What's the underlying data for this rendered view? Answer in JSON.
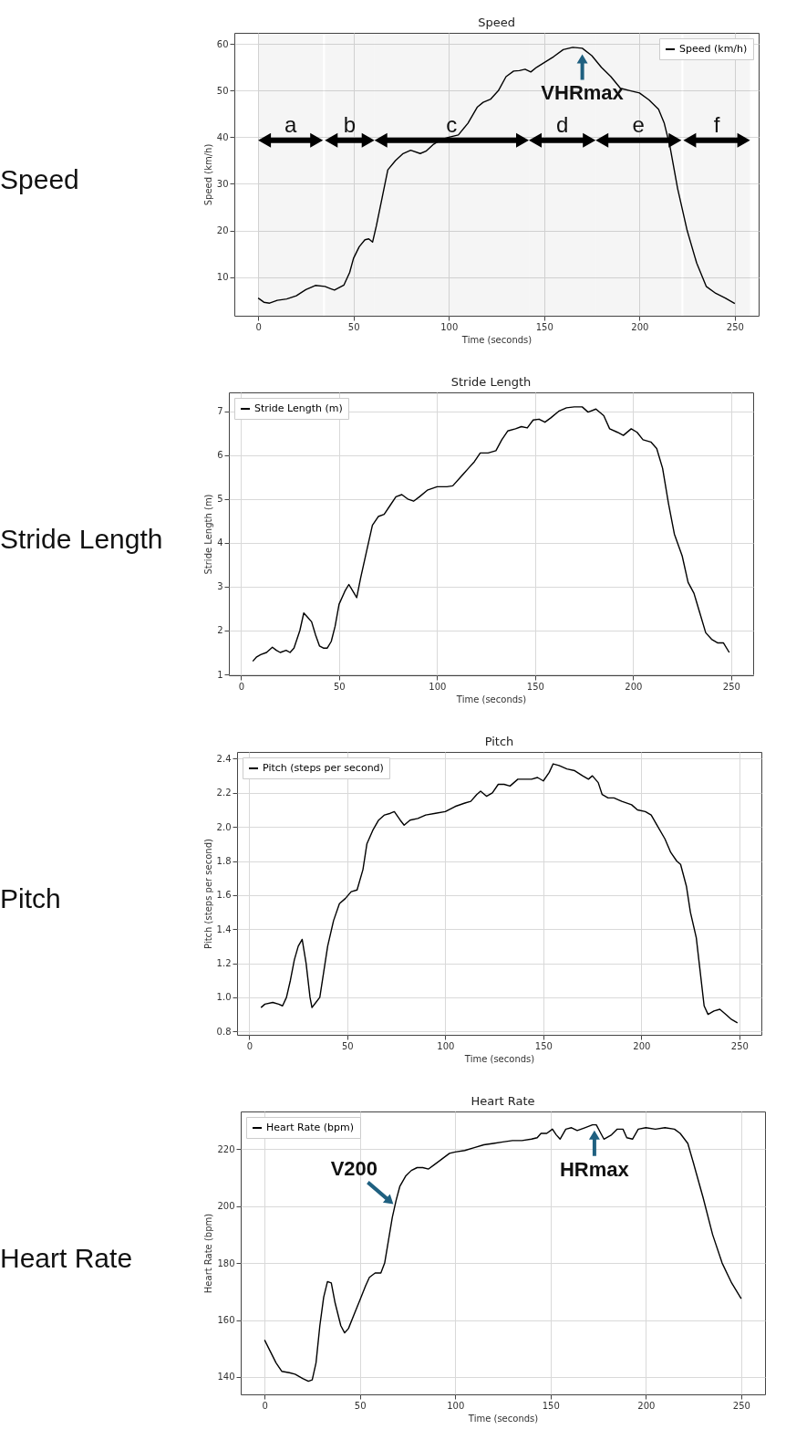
{
  "chart_data": [
    {
      "type": "line",
      "title": "Speed",
      "xlabel": "Time (seconds)",
      "ylabel": "Speed (km/h)",
      "xlim": [
        -12.5,
        262.5
      ],
      "ylim": [
        1.7,
        62.4
      ],
      "xticks": [
        0,
        50,
        100,
        150,
        200,
        250
      ],
      "yticks": [
        10,
        20,
        30,
        40,
        50,
        60
      ],
      "grid": true,
      "legend": "top right",
      "annotations": [
        "Speed",
        {
          "text": "VHRmax",
          "x": 170,
          "y": 59
        }
      ],
      "bands": [
        {
          "axis": "x",
          "from": 0,
          "to": 34,
          "label": "a",
          "color": "#000000"
        },
        {
          "axis": "x",
          "from": 35,
          "to": 61,
          "label": "b",
          "color": "#000000"
        },
        {
          "axis": "x",
          "from": 61,
          "to": 142,
          "label": "c",
          "color": "#000000"
        },
        {
          "axis": "x",
          "from": 142,
          "to": 177,
          "label": "d",
          "color": "#000000"
        },
        {
          "axis": "x",
          "from": 177,
          "to": 222,
          "label": "e",
          "color": "#000000"
        },
        {
          "axis": "x",
          "from": 223,
          "to": 258,
          "label": "f",
          "color": "#000000"
        }
      ],
      "series": [
        {
          "name": "Speed (km/h)",
          "color": "#000000",
          "x": [
            0,
            3,
            6,
            10,
            15,
            20,
            25,
            30,
            35,
            38,
            40,
            45,
            48,
            50,
            53,
            56,
            58,
            60,
            62,
            65,
            68,
            72,
            76,
            80,
            85,
            88,
            92,
            96,
            100,
            105,
            110,
            115,
            118,
            122,
            126,
            130,
            134,
            137,
            140,
            143,
            146,
            150,
            155,
            160,
            165,
            170,
            175,
            180,
            185,
            190,
            195,
            200,
            205,
            210,
            213,
            216,
            220,
            225,
            230,
            235,
            240,
            245,
            250
          ],
          "values": [
            5.5,
            4.6,
            4.4,
            5,
            5.3,
            6,
            7.3,
            8.2,
            8,
            7.5,
            7.2,
            8.3,
            11,
            14,
            16.5,
            18,
            18.2,
            17.5,
            21,
            27,
            33,
            35,
            36.5,
            37.2,
            36.5,
            37,
            38.5,
            39.5,
            40,
            40.5,
            43,
            46.5,
            47.5,
            48.2,
            50,
            53,
            54.2,
            54.3,
            54.6,
            54,
            55,
            56,
            57.3,
            58.8,
            59.3,
            59.1,
            57.5,
            55,
            53,
            50.5,
            50,
            49.5,
            48,
            46,
            43,
            38,
            29,
            20,
            13,
            8,
            6.5,
            5.5,
            4.3
          ]
        }
      ]
    },
    {
      "type": "line",
      "title": "Stride Length",
      "xlabel": "Time (seconds)",
      "ylabel": "Stride Length (m)",
      "xlim": [
        -6.2,
        261.2
      ],
      "ylim": [
        0.98,
        7.43
      ],
      "xticks": [
        0,
        50,
        100,
        150,
        200,
        250
      ],
      "yticks": [
        1,
        2,
        3,
        4,
        5,
        6,
        7
      ],
      "grid": true,
      "legend": "top left",
      "annotations": [
        "Stride Length"
      ],
      "series": [
        {
          "name": "Stride Length (m)",
          "color": "#000000",
          "x": [
            6,
            8,
            10,
            13,
            16,
            18,
            20,
            23,
            25,
            27,
            30,
            32,
            34,
            36,
            38,
            40,
            42,
            44,
            46,
            48,
            50,
            53,
            55,
            57,
            59,
            61,
            64,
            67,
            70,
            73,
            76,
            79,
            82,
            85,
            88,
            91,
            95,
            100,
            105,
            108,
            112,
            116,
            119,
            122,
            126,
            130,
            133,
            136,
            140,
            143,
            146,
            149,
            152,
            155,
            158,
            162,
            166,
            170,
            174,
            177,
            181,
            185,
            188,
            192,
            195,
            199,
            202,
            205,
            209,
            212,
            215,
            218,
            221,
            225,
            228,
            231,
            234,
            237,
            240,
            243,
            246,
            249
          ],
          "values": [
            1.3,
            1.4,
            1.45,
            1.5,
            1.62,
            1.55,
            1.5,
            1.55,
            1.5,
            1.6,
            2.0,
            2.4,
            2.3,
            2.2,
            1.9,
            1.65,
            1.6,
            1.6,
            1.75,
            2.1,
            2.6,
            2.9,
            3.05,
            2.9,
            2.75,
            3.2,
            3.8,
            4.4,
            4.6,
            4.65,
            4.85,
            5.05,
            5.1,
            5.0,
            4.95,
            5.05,
            5.2,
            5.28,
            5.28,
            5.3,
            5.5,
            5.7,
            5.85,
            6.05,
            6.05,
            6.1,
            6.35,
            6.55,
            6.6,
            6.65,
            6.62,
            6.8,
            6.82,
            6.75,
            6.85,
            7.0,
            7.08,
            7.1,
            7.1,
            6.98,
            7.05,
            6.9,
            6.6,
            6.52,
            6.45,
            6.6,
            6.52,
            6.35,
            6.3,
            6.15,
            5.7,
            4.9,
            4.2,
            3.7,
            3.1,
            2.85,
            2.4,
            1.95,
            1.8,
            1.72,
            1.72,
            1.5
          ]
        }
      ]
    },
    {
      "type": "line",
      "title": "Pitch",
      "xlabel": "Time (seconds)",
      "ylabel": "Pitch (steps per second)",
      "xlim": [
        -6.2,
        261.2
      ],
      "ylim": [
        0.78,
        2.44
      ],
      "xticks": [
        0,
        50,
        100,
        150,
        200,
        250
      ],
      "yticks": [
        0.8,
        {
          "value": 1,
          "label": "1.0"
        },
        1.2,
        1.4,
        1.6,
        1.8,
        {
          "value": 2,
          "label": "2.0"
        },
        2.2,
        2.4
      ],
      "grid": true,
      "legend": "top left",
      "annotations": [
        "Pitch"
      ],
      "series": [
        {
          "name": "Pitch (steps per second)",
          "color": "#000000",
          "x": [
            6,
            8,
            12,
            15,
            17,
            19,
            21,
            23,
            25,
            27,
            29,
            31,
            32,
            34,
            36,
            38,
            40,
            43,
            46,
            49,
            52,
            55,
            58,
            60,
            63,
            66,
            69,
            72,
            74,
            77,
            79,
            82,
            86,
            90,
            95,
            100,
            105,
            110,
            113,
            116,
            118,
            121,
            124,
            127,
            130,
            133,
            137,
            140,
            144,
            147,
            150,
            153,
            155,
            158,
            162,
            166,
            170,
            173,
            175,
            178,
            180,
            183,
            186,
            190,
            195,
            198,
            202,
            205,
            208,
            212,
            215,
            218,
            220,
            223,
            225,
            228,
            230,
            232,
            234,
            237,
            240,
            243,
            246,
            249
          ],
          "values": [
            0.94,
            0.96,
            0.97,
            0.96,
            0.95,
            1.0,
            1.1,
            1.22,
            1.3,
            1.34,
            1.2,
            1.0,
            0.94,
            0.97,
            1.0,
            1.15,
            1.3,
            1.45,
            1.55,
            1.58,
            1.62,
            1.63,
            1.75,
            1.9,
            1.98,
            2.04,
            2.07,
            2.08,
            2.09,
            2.04,
            2.01,
            2.04,
            2.05,
            2.07,
            2.08,
            2.09,
            2.12,
            2.14,
            2.15,
            2.19,
            2.21,
            2.18,
            2.2,
            2.25,
            2.25,
            2.24,
            2.28,
            2.28,
            2.28,
            2.29,
            2.27,
            2.32,
            2.37,
            2.36,
            2.34,
            2.33,
            2.3,
            2.28,
            2.3,
            2.26,
            2.19,
            2.17,
            2.17,
            2.15,
            2.13,
            2.1,
            2.09,
            2.07,
            2.01,
            1.93,
            1.85,
            1.8,
            1.78,
            1.65,
            1.5,
            1.35,
            1.15,
            0.95,
            0.9,
            0.92,
            0.93,
            0.9,
            0.87,
            0.85
          ]
        }
      ]
    },
    {
      "type": "line",
      "title": "Heart Rate",
      "xlabel": "Time (seconds)",
      "ylabel": "Heart Rate (bpm)",
      "xlim": [
        -12.5,
        262.5
      ],
      "ylim": [
        133.9,
        233.2
      ],
      "xticks": [
        0,
        50,
        100,
        150,
        200,
        250
      ],
      "yticks": [
        140,
        160,
        180,
        200,
        220
      ],
      "grid": true,
      "legend": "top left",
      "annotations": [
        "Heart Rate",
        {
          "text": "V200",
          "x": 68.5,
          "y": 200
        },
        {
          "text": "HRmax",
          "x": 173,
          "y": 228.5
        }
      ],
      "series": [
        {
          "name": "Heart Rate (bpm)",
          "color": "#000000",
          "x": [
            0,
            3,
            6,
            9,
            13,
            16,
            20,
            23,
            25,
            27,
            29,
            31,
            33,
            35,
            37,
            40,
            42,
            44,
            47,
            50,
            53,
            55,
            58,
            61,
            63,
            65,
            67,
            69,
            71,
            74,
            77,
            80,
            83,
            86,
            89,
            93,
            97,
            100,
            105,
            110,
            115,
            120,
            125,
            130,
            135,
            140,
            143,
            145,
            148,
            151,
            153,
            155,
            158,
            161,
            164,
            168,
            172,
            174,
            176,
            178,
            182,
            185,
            188,
            190,
            193,
            196,
            200,
            205,
            210,
            215,
            218,
            222,
            225,
            230,
            235,
            240,
            245,
            250
          ],
          "values": [
            153,
            149,
            145,
            142,
            141.5,
            141,
            139.5,
            138.5,
            139,
            145,
            158,
            168,
            173.5,
            173,
            166,
            158,
            155.5,
            157,
            162,
            167,
            172,
            175,
            176.5,
            176.5,
            180,
            188,
            196,
            202,
            207,
            210.5,
            212.5,
            213.5,
            213.5,
            213,
            214.5,
            216.5,
            218.5,
            219,
            219.5,
            220.5,
            221.5,
            222,
            222.5,
            223,
            223,
            223.5,
            224,
            225.5,
            225.5,
            227,
            225,
            223.5,
            227,
            227.5,
            226.5,
            227.5,
            228.5,
            228.5,
            226,
            223.5,
            225,
            227,
            227,
            224,
            223.5,
            227,
            227.5,
            227,
            227.5,
            227,
            225.5,
            222,
            215,
            203,
            190,
            180,
            173,
            167.5
          ]
        }
      ]
    }
  ]
}
